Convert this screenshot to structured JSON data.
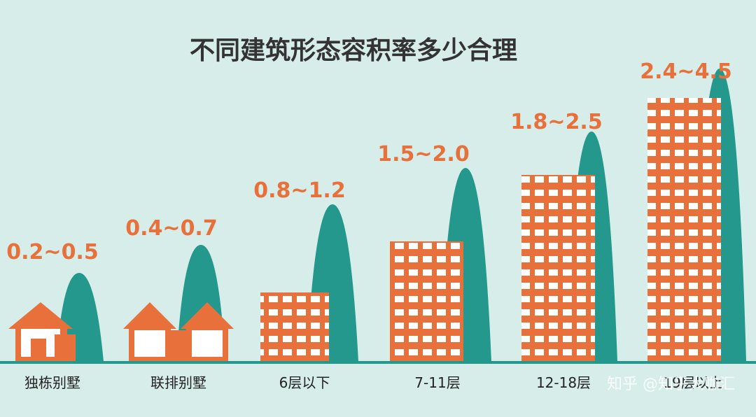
{
  "title": "不同建筑形态容积率多少合理",
  "items": [
    {
      "range": "0.2~0.5",
      "label": "独栋别墅"
    },
    {
      "range": "0.4~0.7",
      "label": "联排别墅"
    },
    {
      "range": "0.8~1.2",
      "label": "6层以下"
    },
    {
      "range": "1.5~2.0",
      "label": "7-11层"
    },
    {
      "range": "1.8~2.5",
      "label": "12-18层"
    },
    {
      "range": "2.4~4.5",
      "label": "19层以上"
    }
  ],
  "watermark": "知乎 @知乎大咖汇"
}
